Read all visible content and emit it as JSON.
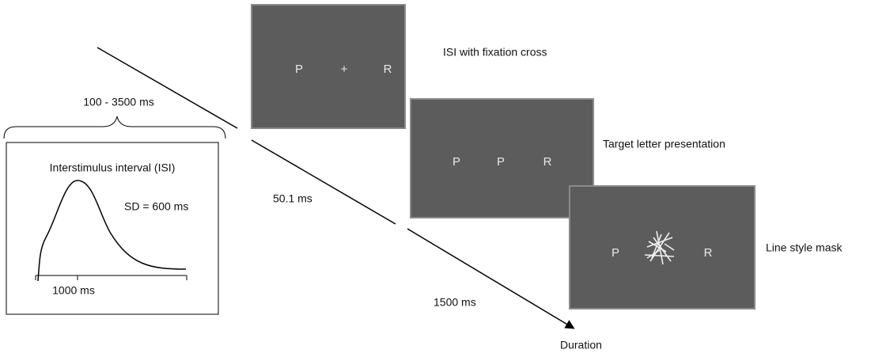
{
  "timeline": {
    "range_label": "100 - 3500 ms",
    "isi_panel": {
      "title": "Interstimulus interval (ISI)",
      "sd_label": "SD = 600 ms",
      "mean_label": "1000 ms"
    },
    "durations": [
      "50.1 ms",
      "1500 ms"
    ],
    "axis_label": "Duration"
  },
  "screens": [
    {
      "label": "ISI with fixation cross",
      "letters": [
        "P",
        "+",
        "R"
      ]
    },
    {
      "label": "Target letter presentation",
      "letters": [
        "P",
        "P",
        "R"
      ]
    },
    {
      "label": "Line style mask",
      "letters": [
        "P",
        "R"
      ]
    }
  ]
}
